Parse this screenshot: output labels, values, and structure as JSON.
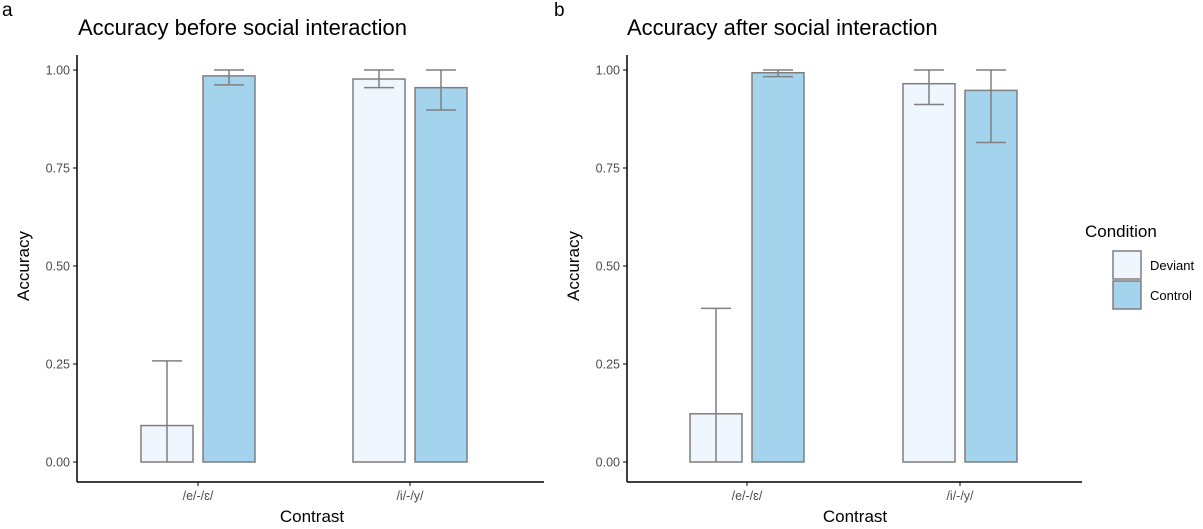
{
  "colors": {
    "deviant_fill": "#EFF6FD",
    "control_fill": "#A4D3EE",
    "bar_stroke": "#7f7f7f",
    "errorbar": "#7f7f7f",
    "axis": "#000000",
    "tick_text": "#4d4d4d"
  },
  "legend": {
    "title": "Condition",
    "items": [
      {
        "label": "Deviant",
        "key": "deviant"
      },
      {
        "label": "Control",
        "key": "control"
      }
    ]
  },
  "chart_data": [
    {
      "panel_letter": "a",
      "type": "bar",
      "title": "Accuracy before social interaction",
      "xlabel": "Contrast",
      "ylabel": "Accuracy",
      "ylim": [
        0,
        1
      ],
      "yticks": [
        "0.00",
        "0.25",
        "0.50",
        "0.75",
        "1.00"
      ],
      "ytick_values": [
        0,
        0.25,
        0.5,
        0.75,
        1.0
      ],
      "categories": [
        "/e/-/ɛ/",
        "/i/-/y/"
      ],
      "grid": false,
      "series": [
        {
          "name": "Deviant",
          "key": "deviant",
          "values": [
            0.093,
            0.977
          ],
          "err_low": [
            0.0,
            0.955
          ],
          "err_high": [
            0.258,
            1.0
          ]
        },
        {
          "name": "Control",
          "key": "control",
          "values": [
            0.985,
            0.955
          ],
          "err_low": [
            0.962,
            0.898
          ],
          "err_high": [
            1.0,
            1.0
          ]
        }
      ]
    },
    {
      "panel_letter": "b",
      "type": "bar",
      "title": "Accuracy after social interaction",
      "xlabel": "Contrast",
      "ylabel": "Accuracy",
      "ylim": [
        0,
        1
      ],
      "yticks": [
        "0.00",
        "0.25",
        "0.50",
        "0.75",
        "1.00"
      ],
      "ytick_values": [
        0,
        0.25,
        0.5,
        0.75,
        1.0
      ],
      "categories": [
        "/e/-/ɛ/",
        "/i/-/y/"
      ],
      "grid": false,
      "series": [
        {
          "name": "Deviant",
          "key": "deviant",
          "values": [
            0.123,
            0.965
          ],
          "err_low": [
            0.0,
            0.912
          ],
          "err_high": [
            0.392,
            1.0
          ]
        },
        {
          "name": "Control",
          "key": "control",
          "values": [
            0.993,
            0.948
          ],
          "err_low": [
            0.983,
            0.815
          ],
          "err_high": [
            1.0,
            1.0
          ]
        }
      ]
    }
  ]
}
